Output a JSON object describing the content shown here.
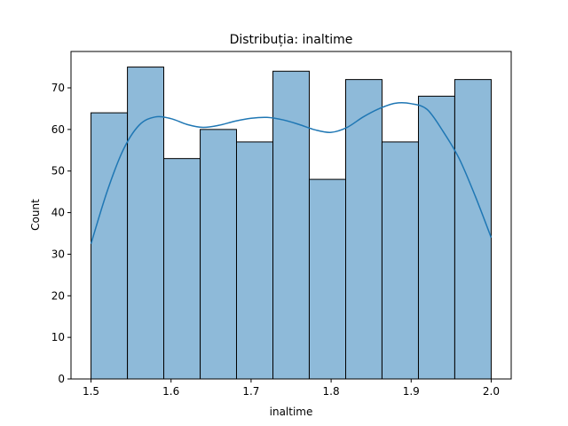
{
  "chart_data": {
    "type": "bar",
    "title": "Distribuția: inaltime",
    "xlabel": "inaltime",
    "ylabel": "Count",
    "xlim": [
      1.475,
      2.025
    ],
    "ylim": [
      0,
      78.75
    ],
    "bin_edges": [
      1.5,
      1.5455,
      1.5909,
      1.6364,
      1.6818,
      1.7273,
      1.7727,
      1.8182,
      1.8636,
      1.9091,
      1.9545,
      2.0
    ],
    "values": [
      64,
      75,
      53,
      60,
      57,
      74,
      48,
      72,
      57,
      68,
      72
    ],
    "x_ticks": [
      "1.5",
      "1.6",
      "1.7",
      "1.8",
      "1.9",
      "2.0"
    ],
    "y_ticks": [
      "0",
      "10",
      "20",
      "30",
      "40",
      "50",
      "60",
      "70"
    ],
    "kde": {
      "x": [
        1.5,
        1.52,
        1.54,
        1.56,
        1.58,
        1.6,
        1.62,
        1.64,
        1.66,
        1.68,
        1.7,
        1.72,
        1.74,
        1.76,
        1.78,
        1.8,
        1.82,
        1.84,
        1.86,
        1.88,
        1.9,
        1.92,
        1.94,
        1.96,
        1.98,
        2.0
      ],
      "y": [
        32.5,
        45,
        55,
        61,
        63,
        62.6,
        61.2,
        60.5,
        61,
        62,
        62.7,
        62.9,
        62.3,
        61.2,
        59.9,
        59.3,
        60.5,
        63,
        65,
        66.3,
        66.2,
        64.8,
        59.5,
        53,
        44,
        34
      ]
    },
    "colors": {
      "bar": "#8ebad9",
      "bar_edge": "#000000",
      "kde": "#1f77b4"
    },
    "grid": false,
    "legend": "none"
  }
}
